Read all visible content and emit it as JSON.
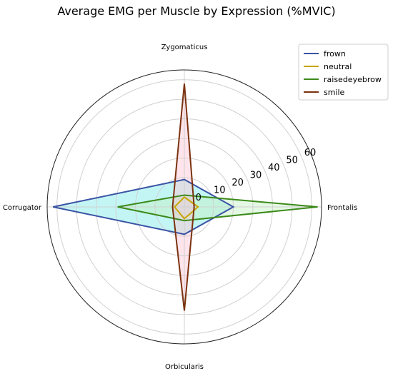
{
  "chart_data": {
    "type": "radar",
    "title": "Average EMG per Muscle by Expression (%MVIC)",
    "categories": [
      "Frontalis",
      "Zygomaticus",
      "Corrugator",
      "Orbicularis"
    ],
    "r_ticks": [
      "0",
      "10",
      "20",
      "30",
      "40",
      "50",
      "60"
    ],
    "rlim": [
      -5,
      65
    ],
    "grid": true,
    "legend_position": "top-right",
    "series": [
      {
        "name": "frown",
        "color": "#3a53a4",
        "fill": "#7ce8e8",
        "values": {
          "Frontalis": 20,
          "Zygomaticus": 9,
          "Corrugator": 62,
          "Orbicularis": 9
        }
      },
      {
        "name": "neutral",
        "color": "#c8a600",
        "fill": "#ccd4ff",
        "values": {
          "Frontalis": 2,
          "Zygomaticus": 0,
          "Corrugator": 0,
          "Orbicularis": 1
        }
      },
      {
        "name": "raisedeyebrow",
        "color": "#3c8a1a",
        "fill": "#c3f2c0",
        "values": {
          "Frontalis": 63,
          "Zygomaticus": 1,
          "Corrugator": 29,
          "Orbicularis": 2
        }
      },
      {
        "name": "smile",
        "color": "#7b3210",
        "fill": "#ffc3d2",
        "values": {
          "Frontalis": 0,
          "Zygomaticus": 58,
          "Corrugator": 1,
          "Orbicularis": 48
        }
      }
    ]
  }
}
